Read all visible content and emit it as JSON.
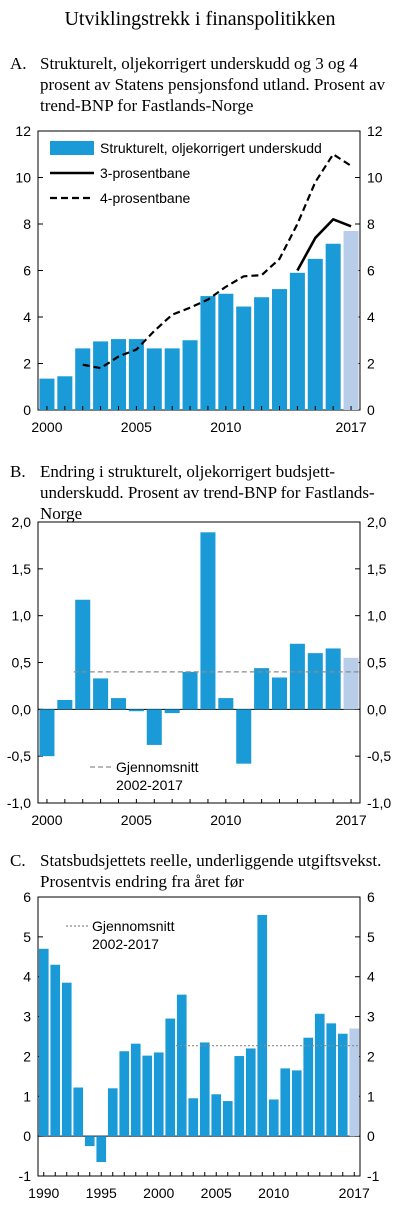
{
  "figure_title": "Utviklingstrekk i finanspolitikken",
  "colors": {
    "bar": "#1a9ad6",
    "bar_highlight": "#b8cde9",
    "line": "#000000",
    "ref_line": "#8c8c8c"
  },
  "panels": [
    {
      "letter": "A.",
      "title": "Strukturelt, oljekorrigert underskudd og 3 og 4 prosent av Statens pensjonsfond utland. Prosent av trend-BNP for Fastlands-Norge"
    },
    {
      "letter": "B.",
      "title": "Endring i strukturelt, oljekorrigert budsjett-underskudd. Prosent av trend-BNP for Fastlands-Norge"
    },
    {
      "letter": "C.",
      "title": "Statsbudsjettets reelle, underliggende utgiftsvekst. Prosentvis endring fra året før"
    }
  ],
  "chart_data": [
    {
      "type": "bar",
      "x": [
        2000,
        2001,
        2002,
        2003,
        2004,
        2005,
        2006,
        2007,
        2008,
        2009,
        2010,
        2011,
        2012,
        2013,
        2014,
        2015,
        2016,
        2017
      ],
      "ylim": [
        0,
        12
      ],
      "yticks": [
        "0",
        "2",
        "4",
        "6",
        "8",
        "10",
        "12"
      ],
      "xticks": [
        "2000",
        "2005",
        "2010",
        "2017"
      ],
      "highlight_x": 2017,
      "series": [
        {
          "name": "Strukturelt, oljekorrigert underskudd",
          "kind": "bar",
          "values": [
            1.35,
            1.45,
            2.65,
            2.95,
            3.05,
            3.05,
            2.65,
            2.65,
            3.0,
            4.9,
            5.0,
            4.45,
            4.85,
            5.2,
            5.9,
            6.5,
            7.15,
            7.7
          ]
        },
        {
          "name": "3-prosentbane",
          "kind": "line",
          "dash": "solid",
          "x": [
            2014,
            2015,
            2016,
            2017
          ],
          "values": [
            6.0,
            7.4,
            8.2,
            7.9
          ]
        },
        {
          "name": "4-prosentbane",
          "kind": "line",
          "dash": "dashed",
          "x": [
            2002,
            2003,
            2004,
            2005,
            2006,
            2007,
            2008,
            2009,
            2010,
            2011,
            2012,
            2013,
            2014,
            2015,
            2016,
            2017
          ],
          "values": [
            1.95,
            1.8,
            2.3,
            2.6,
            3.4,
            4.1,
            4.4,
            4.75,
            5.3,
            5.75,
            5.8,
            6.5,
            8.0,
            9.8,
            11.0,
            10.5
          ]
        }
      ]
    },
    {
      "type": "bar",
      "x": [
        2000,
        2001,
        2002,
        2003,
        2004,
        2005,
        2006,
        2007,
        2008,
        2009,
        2010,
        2011,
        2012,
        2013,
        2014,
        2015,
        2016,
        2017
      ],
      "ylim": [
        -1.0,
        2.0
      ],
      "yticks": [
        "-1,0",
        "-0,5",
        "0,0",
        "0,5",
        "1,0",
        "1,5",
        "2,0"
      ],
      "xticks": [
        "2000",
        "2005",
        "2010",
        "2017"
      ],
      "highlight_x": 2017,
      "series": [
        {
          "kind": "bar",
          "values": [
            -0.5,
            0.1,
            1.17,
            0.33,
            0.12,
            -0.02,
            -0.38,
            -0.04,
            0.4,
            1.89,
            0.12,
            -0.58,
            0.44,
            0.34,
            0.7,
            0.6,
            0.65,
            0.55
          ]
        },
        {
          "name": "Gjennomsnitt 2002-2017",
          "kind": "ref",
          "dash": "dashed",
          "from": 2002,
          "to": 2017,
          "value": 0.4
        }
      ],
      "legend": {
        "line1": "Gjennomsnitt",
        "line2": "2002-2017",
        "placement": "bottom-left"
      }
    },
    {
      "type": "bar",
      "x": [
        1990,
        1991,
        1992,
        1993,
        1994,
        1995,
        1996,
        1997,
        1998,
        1999,
        2000,
        2001,
        2002,
        2003,
        2004,
        2005,
        2006,
        2007,
        2008,
        2009,
        2010,
        2011,
        2012,
        2013,
        2014,
        2015,
        2016,
        2017
      ],
      "ylim": [
        -1,
        6
      ],
      "yticks": [
        "-1",
        "0",
        "1",
        "2",
        "3",
        "4",
        "5",
        "6"
      ],
      "xticks": [
        "1990",
        "1995",
        "2000",
        "2005",
        "2010",
        "2017"
      ],
      "highlight_x": 2017,
      "series": [
        {
          "kind": "bar",
          "values": [
            4.7,
            4.3,
            3.85,
            1.22,
            -0.25,
            -0.65,
            1.2,
            2.13,
            2.32,
            2.02,
            2.1,
            2.95,
            3.55,
            0.95,
            2.35,
            1.05,
            0.88,
            2.01,
            2.2,
            5.55,
            0.92,
            1.7,
            1.65,
            2.47,
            3.07,
            2.83,
            2.57,
            2.7
          ]
        },
        {
          "name": "Gjennomsnitt 2002-2017",
          "kind": "ref",
          "dash": "dotted",
          "from": 2002,
          "to": 2017,
          "value": 2.27
        }
      ],
      "legend": {
        "line1": "Gjennomsnitt",
        "line2": "2002-2017",
        "placement": "top-left"
      }
    }
  ]
}
